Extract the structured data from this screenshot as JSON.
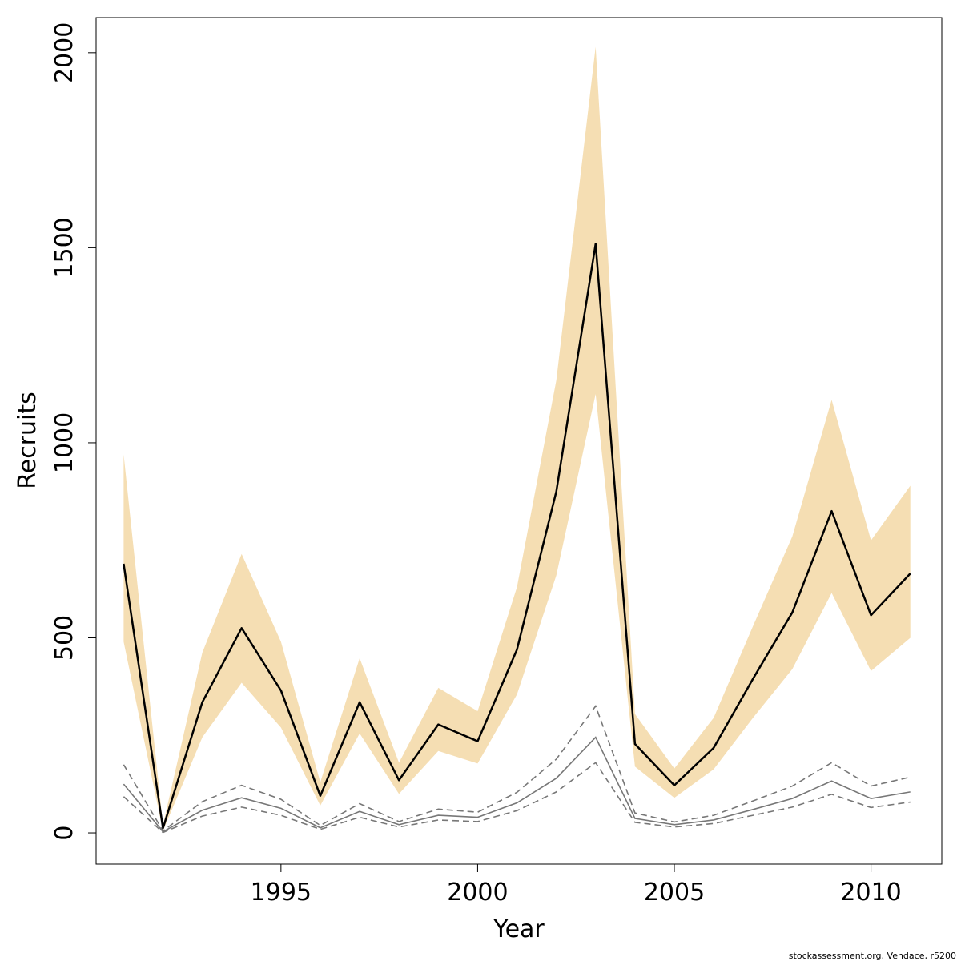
{
  "chart_data": {
    "type": "line",
    "xlabel": "Year",
    "ylabel": "Recruits",
    "xlim": [
      1990.3,
      2011.8
    ],
    "ylim": [
      -80,
      2090
    ],
    "x_ticks": [
      1995,
      2000,
      2005,
      2010
    ],
    "y_ticks": [
      0,
      500,
      1000,
      1500,
      2000
    ],
    "grid": false,
    "x": [
      1991,
      1992,
      1993,
      1994,
      1995,
      1996,
      1997,
      1998,
      1999,
      2000,
      2001,
      2002,
      2003,
      2004,
      2005,
      2006,
      2007,
      2008,
      2009,
      2010,
      2011
    ],
    "series": [
      {
        "role": "estimate",
        "values": [
          690,
          12,
          335,
          525,
          365,
          95,
          335,
          135,
          278,
          235,
          470,
          875,
          1510,
          228,
          122,
          218,
          395,
          565,
          825,
          558,
          665
        ],
        "color": "#000000"
      },
      {
        "role": "confidence-band",
        "lower": [
          490,
          5,
          245,
          385,
          270,
          70,
          255,
          100,
          210,
          178,
          355,
          660,
          1125,
          170,
          90,
          163,
          295,
          420,
          615,
          415,
          500
        ],
        "upper": [
          970,
          20,
          462,
          715,
          490,
          130,
          448,
          180,
          372,
          312,
          630,
          1160,
          2015,
          305,
          165,
          295,
          530,
          760,
          1110,
          750,
          890
        ],
        "color": "#f5deb3"
      },
      {
        "role": "alternative-estimate",
        "values": [
          125,
          3,
          58,
          90,
          63,
          13,
          55,
          21,
          45,
          40,
          77,
          140,
          245,
          37,
          21,
          33,
          60,
          88,
          133,
          88,
          105
        ],
        "color": "#777777"
      },
      {
        "role": "alternative-bounds",
        "lower": [
          93,
          1,
          43,
          66,
          45,
          9,
          40,
          15,
          33,
          29,
          57,
          105,
          180,
          27,
          15,
          24,
          45,
          66,
          99,
          65,
          79
        ],
        "upper": [
          175,
          5,
          80,
          122,
          86,
          19,
          75,
          29,
          61,
          53,
          104,
          189,
          325,
          51,
          28,
          45,
          82,
          120,
          180,
          120,
          143
        ],
        "color": "#777777"
      }
    ]
  },
  "footer": {
    "credit": "stockassessment.org, Vendace, r5200"
  }
}
